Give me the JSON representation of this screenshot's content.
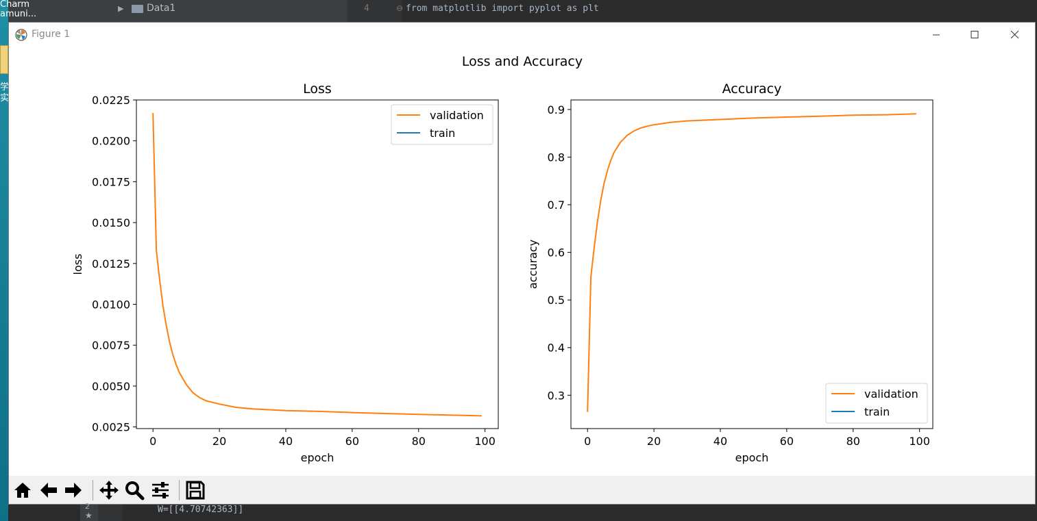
{
  "desktop": {
    "text_lines": [
      "Charm",
      "amuni..."
    ],
    "chars": [
      "学",
      "实"
    ]
  },
  "ide": {
    "tree_folder": "Data1",
    "line_number": "4",
    "code_line": "from matplotlib import pyplot as plt",
    "console_output": "W=[[4.70742363]]",
    "side_label": "2"
  },
  "window": {
    "title": "Figure 1",
    "icons": {
      "app": "matplotlib-icon",
      "minimize": "minimize-icon",
      "maximize": "maximize-icon",
      "close": "close-icon"
    }
  },
  "toolbar": {
    "buttons": [
      {
        "name": "home-icon"
      },
      {
        "name": "back-icon"
      },
      {
        "name": "forward-icon"
      },
      {
        "name": "pan-icon"
      },
      {
        "name": "zoom-icon"
      },
      {
        "name": "configure-subplots-icon"
      },
      {
        "name": "save-icon"
      }
    ]
  },
  "chart_data": {
    "suptitle": "Loss and Accuracy",
    "colors": {
      "validation": "#ff7f0e",
      "train": "#1f77b4"
    },
    "charts": [
      {
        "type": "line",
        "title": "Loss",
        "xlabel": "epoch",
        "ylabel": "loss",
        "xlim": [
          -5,
          104
        ],
        "ylim": [
          0.0024,
          0.0225
        ],
        "xticks": [
          0,
          20,
          40,
          60,
          80,
          100
        ],
        "xtick_labels": [
          "0",
          "20",
          "40",
          "60",
          "80",
          "100"
        ],
        "yticks": [
          0.0025,
          0.005,
          0.0075,
          0.01,
          0.0125,
          0.015,
          0.0175,
          0.02,
          0.0225
        ],
        "ytick_labels": [
          "0.0025",
          "0.0050",
          "0.0075",
          "0.0100",
          "0.0125",
          "0.0150",
          "0.0175",
          "0.0200",
          "0.0225"
        ],
        "legend_position": "upper right",
        "series": [
          {
            "name": "validation",
            "color": "#ff7f0e",
            "x": [
              0,
              1,
              2,
              3,
              4,
              5,
              6,
              7,
              8,
              10,
              12,
              14,
              16,
              18,
              20,
              25,
              30,
              40,
              50,
              60,
              70,
              80,
              90,
              99
            ],
            "y": [
              0.0217,
              0.0133,
              0.0115,
              0.0099,
              0.0087,
              0.0077,
              0.0069,
              0.0063,
              0.0058,
              0.0051,
              0.0046,
              0.0043,
              0.0041,
              0.004,
              0.0039,
              0.0037,
              0.0036,
              0.0035,
              0.00345,
              0.00338,
              0.00332,
              0.00327,
              0.00322,
              0.00318
            ]
          },
          {
            "name": "train",
            "color": "#1f77b4",
            "x": [],
            "y": []
          }
        ]
      },
      {
        "type": "line",
        "title": "Accuracy",
        "xlabel": "epoch",
        "ylabel": "accuracy",
        "xlim": [
          -5,
          104
        ],
        "ylim": [
          0.23,
          0.92
        ],
        "xticks": [
          0,
          20,
          40,
          60,
          80,
          100
        ],
        "xtick_labels": [
          "0",
          "20",
          "40",
          "60",
          "80",
          "100"
        ],
        "yticks": [
          0.3,
          0.4,
          0.5,
          0.6,
          0.7,
          0.8,
          0.9
        ],
        "ytick_labels": [
          "0.3",
          "0.4",
          "0.5",
          "0.6",
          "0.7",
          "0.8",
          "0.9"
        ],
        "legend_position": "lower right",
        "series": [
          {
            "name": "validation",
            "color": "#ff7f0e",
            "x": [
              0,
              1,
              2,
              3,
              4,
              5,
              6,
              7,
              8,
              10,
              12,
              14,
              16,
              18,
              20,
              25,
              30,
              40,
              50,
              60,
              70,
              80,
              90,
              99
            ],
            "y": [
              0.265,
              0.548,
              0.61,
              0.665,
              0.71,
              0.745,
              0.772,
              0.793,
              0.81,
              0.832,
              0.846,
              0.855,
              0.861,
              0.865,
              0.868,
              0.873,
              0.876,
              0.879,
              0.882,
              0.884,
              0.886,
              0.888,
              0.889,
              0.891
            ]
          },
          {
            "name": "train",
            "color": "#1f77b4",
            "x": [],
            "y": []
          }
        ]
      }
    ]
  }
}
